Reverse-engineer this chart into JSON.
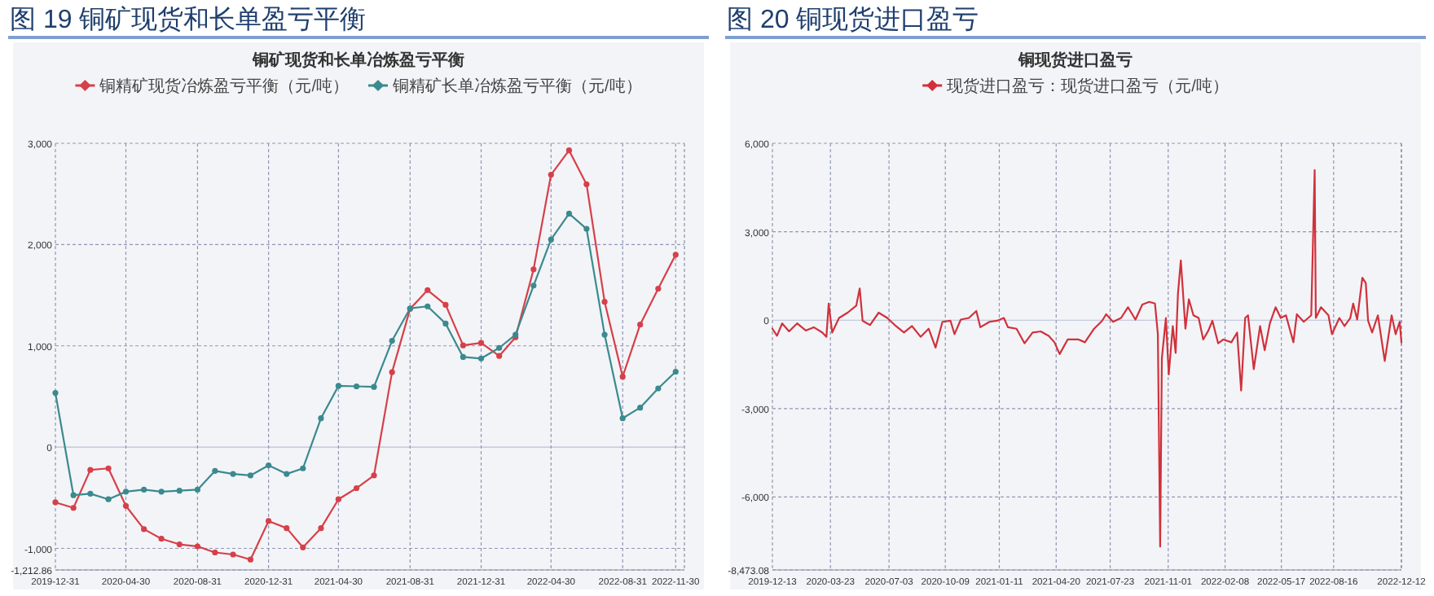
{
  "chart_data": [
    {
      "type": "line",
      "title": "图 19 铜矿现货和长单盈亏平衡",
      "subtitle": "铜矿现货和长单冶炼盈亏平衡",
      "legend": "top",
      "grid": true,
      "marker": "circle",
      "x": [
        "2019-12-31",
        "2020-01-31",
        "2020-02-29",
        "2020-03-31",
        "2020-04-30",
        "2020-05-31",
        "2020-06-30",
        "2020-07-31",
        "2020-08-31",
        "2020-09-30",
        "2020-10-31",
        "2020-11-30",
        "2020-12-31",
        "2021-01-31",
        "2021-02-28",
        "2021-03-31",
        "2021-04-30",
        "2021-05-31",
        "2021-06-30",
        "2021-07-31",
        "2021-08-31",
        "2021-09-30",
        "2021-10-31",
        "2021-11-30",
        "2021-12-31",
        "2022-01-31",
        "2022-02-28",
        "2022-03-31",
        "2022-04-30",
        "2022-05-31",
        "2022-06-30",
        "2022-07-31",
        "2022-08-31",
        "2022-09-30",
        "2022-10-31",
        "2022-11-30"
      ],
      "xlim": [
        "2019-12-31",
        "2022-12-15"
      ],
      "xticks": [
        "2019-12-31",
        "2020-04-30",
        "2020-08-31",
        "2020-12-31",
        "2021-04-30",
        "2021-08-31",
        "2021-12-31",
        "2022-04-30",
        "2022-08-31",
        "2022-11-30"
      ],
      "ylim": [
        -1212.86,
        3000
      ],
      "yticks": [
        {
          "value": -1212.86,
          "label": "-1,212.86"
        },
        {
          "value": -1000,
          "label": "-1,000"
        },
        0,
        {
          "value": 1000,
          "label": "1,000"
        },
        {
          "value": 2000,
          "label": "2,000"
        },
        {
          "value": 3000,
          "label": "3,000"
        }
      ],
      "series": [
        {
          "name": "铜精矿现货冶炼盈亏平衡（元/吨）",
          "color": "#d6404a",
          "values": [
            -545,
            -600,
            -225,
            -210,
            -580,
            -810,
            -905,
            -960,
            -980,
            -1040,
            -1060,
            -1110,
            -730,
            -800,
            -990,
            -800,
            -515,
            -405,
            -280,
            740,
            1365,
            1550,
            1405,
            1005,
            1030,
            900,
            1085,
            1755,
            2690,
            2930,
            2595,
            1435,
            695,
            1210,
            1565,
            1900
          ]
        },
        {
          "name": "铜精矿长单冶炼盈亏平衡（元/吨）",
          "color": "#3a8a8f",
          "values": [
            535,
            -475,
            -460,
            -515,
            -440,
            -420,
            -440,
            -430,
            -420,
            -235,
            -265,
            -280,
            -180,
            -265,
            -210,
            285,
            605,
            600,
            595,
            1050,
            1370,
            1390,
            1220,
            890,
            875,
            980,
            1110,
            1595,
            2050,
            2305,
            2155,
            1110,
            285,
            390,
            580,
            745
          ]
        }
      ]
    },
    {
      "type": "line",
      "title": "图 20 铜现货进口盈亏",
      "subtitle": "铜现货进口盈亏",
      "legend": "top",
      "grid": true,
      "x": [
        "2019-12-13",
        "2019-12-21",
        "2019-12-30",
        "2020-01-11",
        "2020-01-25",
        "2020-02-09",
        "2020-02-23",
        "2020-03-09",
        "2020-03-16",
        "2020-03-20",
        "2020-03-26",
        "2020-04-07",
        "2020-04-22",
        "2020-05-07",
        "2020-05-13",
        "2020-05-18",
        "2020-05-31",
        "2020-06-15",
        "2020-06-30",
        "2020-07-15",
        "2020-07-29",
        "2020-08-12",
        "2020-08-27",
        "2020-09-10",
        "2020-09-22",
        "2020-10-04",
        "2020-10-18",
        "2020-10-25",
        "2020-11-05",
        "2020-11-19",
        "2020-12-02",
        "2020-12-09",
        "2020-12-25",
        "2021-01-07",
        "2021-01-19",
        "2021-01-26",
        "2021-02-10",
        "2021-02-24",
        "2021-03-10",
        "2021-03-24",
        "2021-04-07",
        "2021-04-17",
        "2021-04-26",
        "2021-05-10",
        "2021-05-29",
        "2021-06-09",
        "2021-06-25",
        "2021-07-09",
        "2021-07-16",
        "2021-07-28",
        "2021-08-11",
        "2021-08-23",
        "2021-09-05",
        "2021-09-17",
        "2021-09-29",
        "2021-10-09",
        "2021-10-14",
        "2021-10-18",
        "2021-10-21",
        "2021-10-28",
        "2021-11-02",
        "2021-11-09",
        "2021-11-14",
        "2021-11-18",
        "2021-11-23",
        "2021-12-01",
        "2021-12-07",
        "2021-12-15",
        "2021-12-24",
        "2022-01-01",
        "2022-01-10",
        "2022-01-17",
        "2022-01-27",
        "2022-02-05",
        "2022-02-19",
        "2022-03-01",
        "2022-03-08",
        "2022-03-15",
        "2022-03-20",
        "2022-03-30",
        "2022-04-10",
        "2022-04-18",
        "2022-04-27",
        "2022-05-07",
        "2022-05-16",
        "2022-05-25",
        "2022-06-07",
        "2022-06-13",
        "2022-06-25",
        "2022-07-08",
        "2022-07-14",
        "2022-07-16",
        "2022-07-25",
        "2022-08-07",
        "2022-08-13",
        "2022-08-26",
        "2022-09-04",
        "2022-09-14",
        "2022-09-19",
        "2022-09-26",
        "2022-10-05",
        "2022-10-11",
        "2022-10-15",
        "2022-10-22",
        "2022-11-01",
        "2022-11-13",
        "2022-11-25",
        "2022-12-02",
        "2022-12-09",
        "2022-12-12"
      ],
      "xlim": [
        "2019-12-13",
        "2022-12-12"
      ],
      "xticks": [
        "2019-12-13",
        "2020-03-23",
        "2020-07-03",
        "2020-10-09",
        "2021-01-11",
        "2021-04-20",
        "2021-07-23",
        "2021-11-01",
        "2022-02-08",
        "2022-05-17",
        "2022-08-16",
        "2022-12-12"
      ],
      "ylim": [
        -8473.08,
        6000
      ],
      "yticks": [
        {
          "value": -8473.08,
          "label": "-8,473.08"
        },
        {
          "value": -6000,
          "label": "-6,000"
        },
        {
          "value": -3000,
          "label": "-3,000"
        },
        0,
        {
          "value": 3000,
          "label": "3,000"
        },
        {
          "value": 6000,
          "label": "6,000"
        }
      ],
      "series": [
        {
          "name": "现货进口盈亏：现货进口盈亏（元/吨）",
          "color": "#d0313c",
          "values": [
            -290,
            -530,
            -110,
            -380,
            -110,
            -350,
            -240,
            -420,
            -565,
            565,
            -420,
            75,
            255,
            495,
            1075,
            -20,
            -165,
            255,
            75,
            -200,
            -420,
            -200,
            -565,
            -290,
            -930,
            -55,
            -20,
            -475,
            20,
            75,
            310,
            -240,
            -55,
            -20,
            75,
            -240,
            -290,
            -785,
            -420,
            -380,
            -530,
            -750,
            -1150,
            -655,
            -655,
            -750,
            -290,
            -20,
            200,
            -55,
            75,
            440,
            20,
            530,
            620,
            565,
            -475,
            -7680,
            -1295,
            75,
            -1845,
            -200,
            -1110,
            895,
            2025,
            -290,
            710,
            165,
            75,
            -655,
            -350,
            -20,
            -785,
            -655,
            -750,
            -420,
            -2390,
            75,
            165,
            -1660,
            -200,
            -1020,
            -110,
            440,
            75,
            165,
            -750,
            200,
            -55,
            165,
            5090,
            75,
            440,
            165,
            -475,
            75,
            -200,
            75,
            565,
            20,
            1440,
            1260,
            -20,
            -420,
            165,
            -1385,
            165,
            -475,
            -55,
            -750
          ]
        }
      ]
    }
  ]
}
